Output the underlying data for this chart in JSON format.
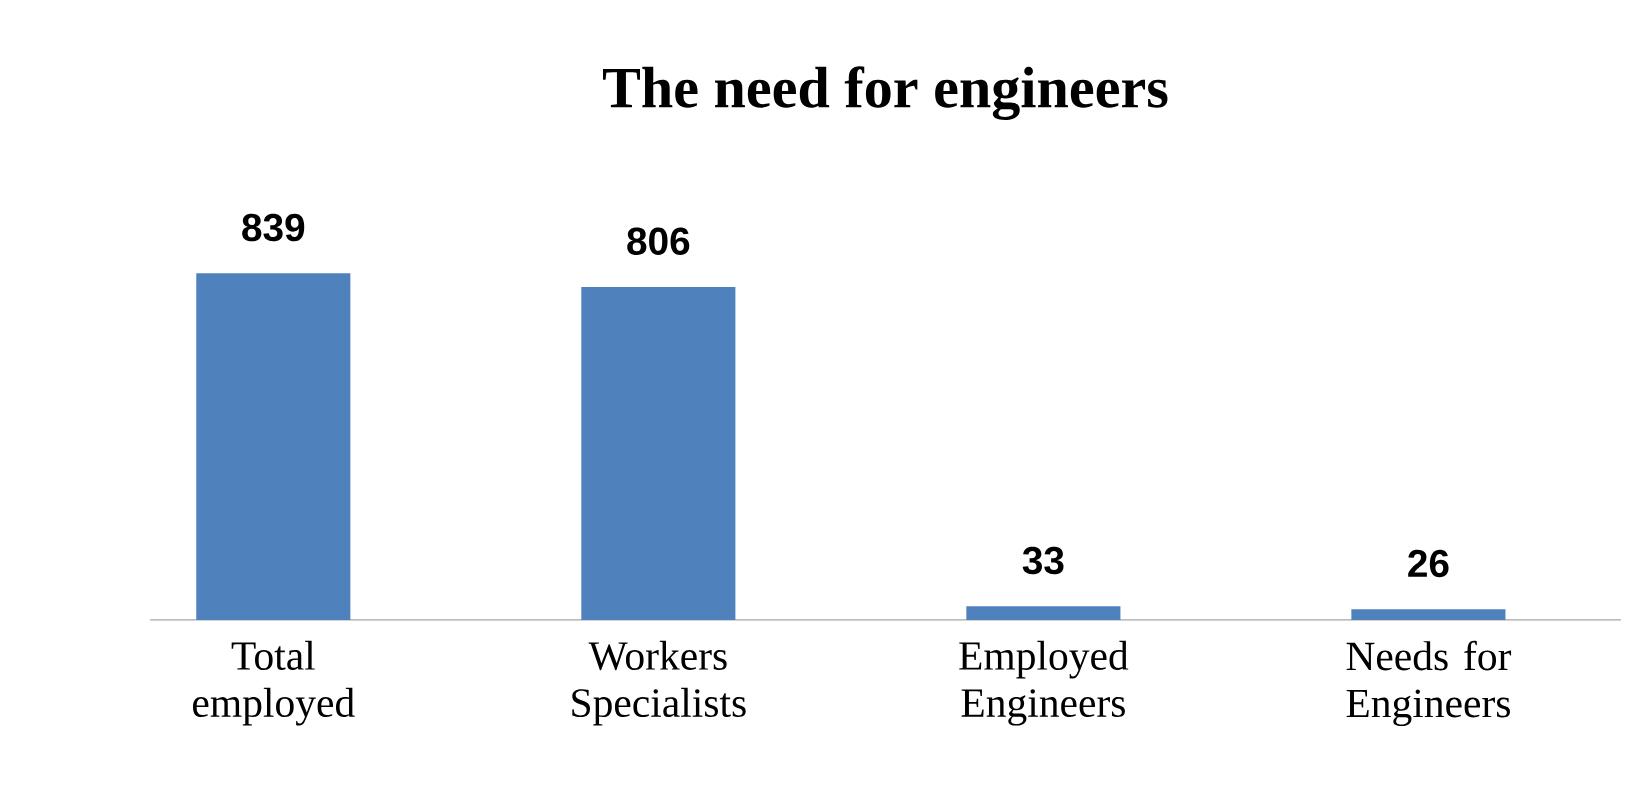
{
  "chart_data": {
    "type": "bar",
    "title": "The need for engineers",
    "categories": [
      "Total employed",
      "Workers Specialists",
      "Employed Engineers",
      "Needs for Engineers"
    ],
    "values": [
      839,
      806,
      33,
      26
    ],
    "color": "#4f81bd",
    "data_labels": true
  }
}
